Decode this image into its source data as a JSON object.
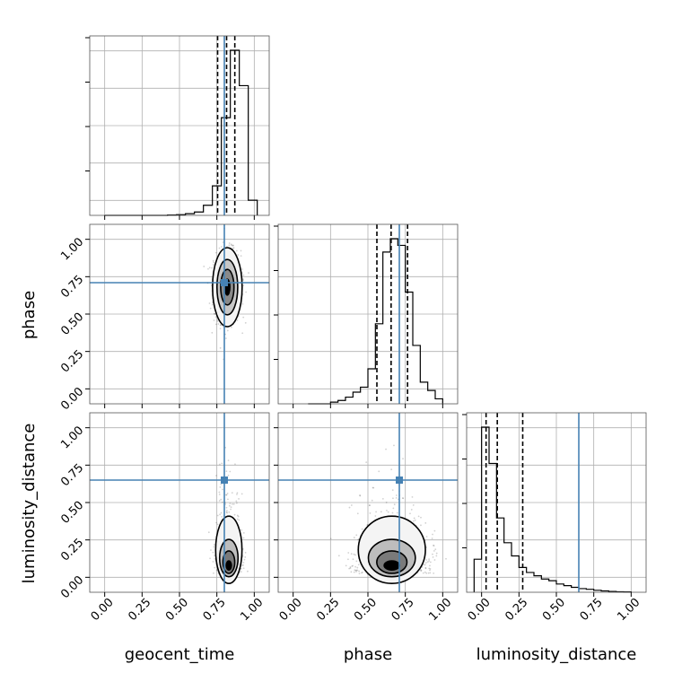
{
  "chart_data": {
    "type": "corner",
    "parameters": [
      "geocent_time",
      "phase",
      "luminosity_distance"
    ],
    "axis_range": [
      -0.1,
      1.1
    ],
    "tick_labels": [
      "0.00",
      "0.25",
      "0.50",
      "0.75",
      "1.00"
    ],
    "tick_values": [
      0.0,
      0.25,
      0.5,
      0.75,
      1.0
    ],
    "grid": true,
    "truth_color": "#4682b4",
    "truths": {
      "geocent_time": 0.8,
      "phase": 0.71,
      "luminosity_distance": 0.65
    },
    "quantile_lines": {
      "geocent_time": [
        0.755,
        0.815,
        0.87
      ],
      "phase": [
        0.56,
        0.655,
        0.765
      ],
      "luminosity_distance": [
        0.03,
        0.105,
        0.275
      ]
    },
    "histograms": {
      "geocent_time": {
        "bin_edges": [
          0.0,
          0.06,
          0.12,
          0.18,
          0.24,
          0.3,
          0.36,
          0.42,
          0.48,
          0.54,
          0.6,
          0.66,
          0.72,
          0.78,
          0.84,
          0.9,
          0.96,
          1.02
        ],
        "counts": [
          0,
          0,
          0,
          0,
          0,
          0,
          0,
          0.002,
          0.004,
          0.01,
          0.02,
          0.06,
          0.175,
          0.58,
          0.98,
          0.77,
          0.09
        ]
      },
      "phase": {
        "bin_edges": [
          0.1,
          0.15,
          0.2,
          0.25,
          0.3,
          0.35,
          0.4,
          0.45,
          0.5,
          0.55,
          0.6,
          0.65,
          0.7,
          0.75,
          0.8,
          0.85,
          0.9,
          0.95,
          1.0
        ],
        "counts": [
          0,
          0,
          0,
          0.01,
          0.02,
          0.04,
          0.07,
          0.1,
          0.21,
          0.48,
          0.91,
          0.99,
          0.95,
          0.67,
          0.35,
          0.13,
          0.08,
          0.03
        ]
      },
      "luminosity_distance": {
        "bin_edges": [
          -0.05,
          0.0,
          0.05,
          0.1,
          0.15,
          0.2,
          0.25,
          0.3,
          0.35,
          0.4,
          0.45,
          0.5,
          0.55,
          0.6,
          0.65,
          0.7,
          0.75,
          0.8,
          0.85,
          0.9,
          0.95,
          1.0
        ],
        "counts": [
          0.2,
          1.0,
          0.78,
          0.45,
          0.3,
          0.22,
          0.15,
          0.12,
          0.1,
          0.08,
          0.07,
          0.05,
          0.04,
          0.03,
          0.022,
          0.018,
          0.012,
          0.008,
          0.005,
          0.003,
          0.002
        ]
      }
    },
    "density_centers": {
      "phase_vs_geocent_time": {
        "x": 0.82,
        "y": 0.68
      },
      "luminosity_distance_vs_geocent_time": {
        "x": 0.83,
        "y": 0.08
      },
      "luminosity_distance_vs_phase": {
        "x": 0.66,
        "y": 0.08
      }
    }
  }
}
